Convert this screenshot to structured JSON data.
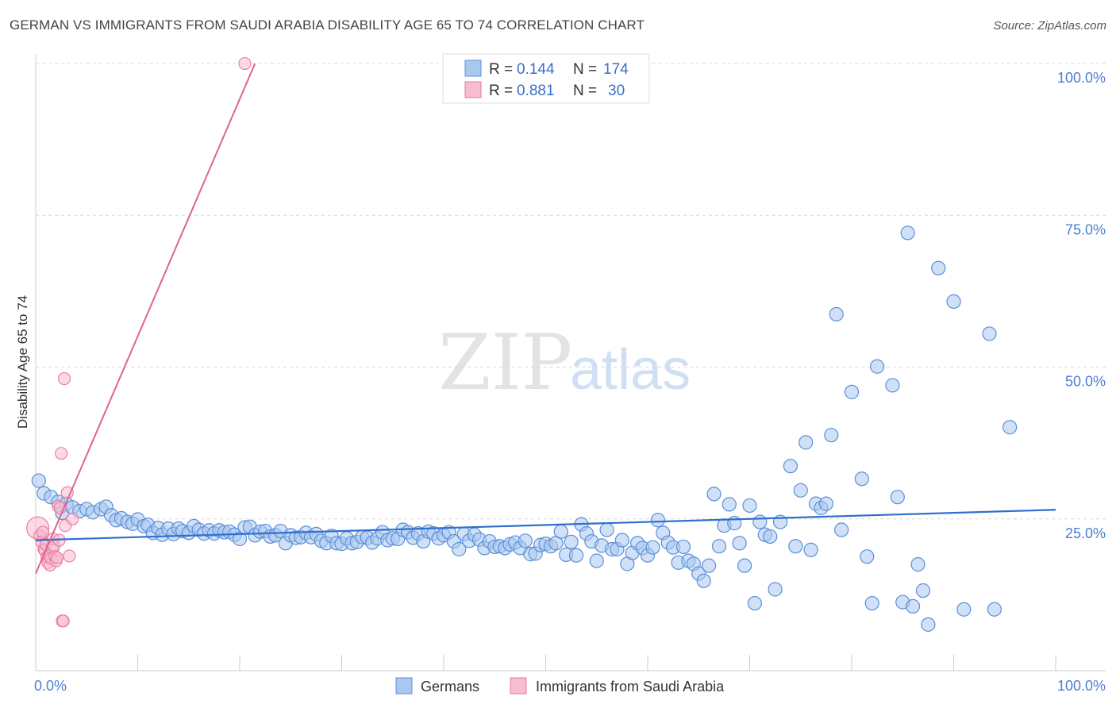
{
  "header": {
    "title": "GERMAN VS IMMIGRANTS FROM SAUDI ARABIA DISABILITY AGE 65 TO 74 CORRELATION CHART",
    "source": "Source: ZipAtlas.com"
  },
  "watermark": {
    "zip": "ZIP",
    "atlas": "atlas"
  },
  "colors": {
    "german_fill": "#a9c8f0",
    "german_stroke": "#5b8fd8",
    "german_line": "#2f6fcf",
    "saudi_fill": "#f7bcd0",
    "saudi_stroke": "#e9799e",
    "saudi_line": "#e0628f",
    "grid": "#d8d8d8",
    "axis_text": "#4a7fd0"
  },
  "legend": {
    "german": {
      "r_label": "R =",
      "r_value": "0.144",
      "n_label": "N =",
      "n_value": "174"
    },
    "saudi": {
      "r_label": "R =",
      "r_value": "0.881",
      "n_label": "N =",
      "n_value": "30"
    }
  },
  "bottom_legend": {
    "german": "Germans",
    "saudi": "Immigrants from Saudi Arabia"
  },
  "chart_data": {
    "type": "scatter",
    "title": "GERMAN VS IMMIGRANTS FROM SAUDI ARABIA DISABILITY AGE 65 TO 74 CORRELATION CHART",
    "xlabel": "",
    "ylabel": "Disability Age 65 to 74",
    "xlim": [
      0,
      100
    ],
    "ylim": [
      0,
      105
    ],
    "x_tick_labels": [
      "0.0%",
      "100.0%"
    ],
    "y_ticks": [
      25,
      50,
      75,
      100
    ],
    "y_tick_labels": [
      "25.0%",
      "50.0%",
      "75.0%",
      "100.0%"
    ],
    "grid": true,
    "legend_position": "top-center",
    "series": [
      {
        "name": "Germans",
        "r": 0.144,
        "n": 174,
        "trend": {
          "x": [
            0,
            100
          ],
          "y": [
            21.5,
            26.5
          ]
        },
        "points": [
          [
            0.3,
            31.3
          ],
          [
            0.8,
            29.2
          ],
          [
            1.5,
            28.6
          ],
          [
            2.2,
            27.8
          ],
          [
            2.6,
            26.0
          ],
          [
            3.0,
            27.5
          ],
          [
            3.6,
            26.9
          ],
          [
            4.3,
            26.3
          ],
          [
            5.0,
            26.6
          ],
          [
            5.6,
            26.1
          ],
          [
            6.4,
            26.6
          ],
          [
            6.9,
            27.0
          ],
          [
            7.4,
            25.6
          ],
          [
            7.9,
            24.8
          ],
          [
            8.4,
            25.1
          ],
          [
            9.0,
            24.5
          ],
          [
            9.5,
            24.2
          ],
          [
            10.0,
            24.9
          ],
          [
            10.6,
            23.8
          ],
          [
            11.0,
            24.0
          ],
          [
            11.5,
            22.7
          ],
          [
            12.0,
            23.5
          ],
          [
            12.4,
            22.4
          ],
          [
            13.0,
            23.4
          ],
          [
            13.5,
            22.5
          ],
          [
            14.0,
            23.4
          ],
          [
            14.4,
            23.0
          ],
          [
            15.0,
            22.7
          ],
          [
            15.5,
            23.8
          ],
          [
            16.0,
            23.2
          ],
          [
            16.5,
            22.6
          ],
          [
            17.0,
            23.1
          ],
          [
            17.5,
            22.6
          ],
          [
            18.0,
            23.1
          ],
          [
            18.5,
            22.8
          ],
          [
            19.0,
            22.9
          ],
          [
            19.5,
            22.4
          ],
          [
            20.0,
            21.7
          ],
          [
            20.5,
            23.6
          ],
          [
            21.0,
            23.7
          ],
          [
            21.5,
            22.3
          ],
          [
            22.0,
            22.9
          ],
          [
            22.5,
            23.0
          ],
          [
            23.0,
            22.1
          ],
          [
            23.5,
            22.3
          ],
          [
            24.0,
            23.0
          ],
          [
            24.5,
            21.0
          ],
          [
            25.0,
            22.3
          ],
          [
            25.5,
            21.9
          ],
          [
            26.0,
            22.0
          ],
          [
            26.5,
            22.7
          ],
          [
            27.0,
            22.0
          ],
          [
            27.5,
            22.5
          ],
          [
            28.0,
            21.4
          ],
          [
            28.5,
            21.0
          ],
          [
            29.0,
            22.2
          ],
          [
            29.5,
            21.0
          ],
          [
            30.0,
            20.9
          ],
          [
            30.5,
            21.8
          ],
          [
            31.0,
            21.0
          ],
          [
            31.5,
            21.2
          ],
          [
            32.0,
            22.0
          ],
          [
            32.5,
            21.9
          ],
          [
            33.0,
            21.1
          ],
          [
            33.5,
            21.8
          ],
          [
            34.0,
            22.8
          ],
          [
            34.5,
            21.5
          ],
          [
            35.0,
            21.8
          ],
          [
            35.5,
            21.7
          ],
          [
            36.0,
            23.2
          ],
          [
            36.5,
            22.8
          ],
          [
            37.0,
            21.9
          ],
          [
            37.5,
            22.6
          ],
          [
            38.0,
            21.3
          ],
          [
            38.5,
            22.9
          ],
          [
            39.0,
            22.6
          ],
          [
            39.5,
            21.8
          ],
          [
            40.0,
            22.3
          ],
          [
            40.5,
            22.8
          ],
          [
            41.0,
            21.3
          ],
          [
            41.5,
            20.0
          ],
          [
            42.0,
            22.5
          ],
          [
            42.5,
            21.4
          ],
          [
            43.0,
            22.4
          ],
          [
            43.5,
            21.6
          ],
          [
            44.0,
            20.2
          ],
          [
            44.5,
            21.3
          ],
          [
            45.0,
            20.4
          ],
          [
            45.5,
            20.5
          ],
          [
            46.0,
            20.2
          ],
          [
            46.5,
            20.8
          ],
          [
            47.0,
            21.1
          ],
          [
            47.5,
            20.2
          ],
          [
            48.0,
            21.4
          ],
          [
            48.5,
            19.2
          ],
          [
            49.0,
            19.3
          ],
          [
            49.5,
            20.7
          ],
          [
            50.0,
            20.9
          ],
          [
            50.5,
            20.5
          ],
          [
            51.0,
            21.0
          ],
          [
            51.5,
            22.9
          ],
          [
            52.0,
            19.1
          ],
          [
            52.5,
            21.2
          ],
          [
            53.0,
            19.0
          ],
          [
            53.5,
            24.1
          ],
          [
            54.0,
            22.6
          ],
          [
            54.5,
            21.3
          ],
          [
            55.0,
            18.1
          ],
          [
            55.5,
            20.6
          ],
          [
            56.0,
            23.2
          ],
          [
            56.5,
            20.0
          ],
          [
            57.0,
            20.0
          ],
          [
            57.5,
            21.5
          ],
          [
            58.0,
            17.6
          ],
          [
            58.5,
            19.4
          ],
          [
            59.0,
            21.0
          ],
          [
            59.5,
            20.2
          ],
          [
            60.0,
            19.0
          ],
          [
            60.5,
            20.3
          ],
          [
            61.0,
            24.8
          ],
          [
            61.5,
            22.7
          ],
          [
            62.0,
            21.1
          ],
          [
            62.5,
            20.3
          ],
          [
            63.0,
            17.8
          ],
          [
            63.5,
            20.4
          ],
          [
            64.0,
            18.1
          ],
          [
            64.5,
            17.6
          ],
          [
            65.0,
            16.0
          ],
          [
            65.5,
            14.8
          ],
          [
            66.0,
            17.3
          ],
          [
            66.5,
            29.1
          ],
          [
            67.0,
            20.5
          ],
          [
            67.5,
            23.9
          ],
          [
            68.0,
            27.4
          ],
          [
            68.5,
            24.3
          ],
          [
            69.0,
            21.0
          ],
          [
            69.5,
            17.3
          ],
          [
            70.0,
            27.2
          ],
          [
            70.5,
            11.1
          ],
          [
            71.0,
            24.5
          ],
          [
            71.5,
            22.4
          ],
          [
            72.0,
            22.1
          ],
          [
            72.5,
            13.4
          ],
          [
            73.0,
            24.5
          ],
          [
            74.0,
            33.7
          ],
          [
            74.5,
            20.5
          ],
          [
            75.0,
            29.7
          ],
          [
            75.5,
            37.6
          ],
          [
            76.0,
            19.9
          ],
          [
            76.5,
            27.5
          ],
          [
            77.0,
            26.8
          ],
          [
            77.5,
            27.5
          ],
          [
            78.0,
            38.8
          ],
          [
            78.5,
            58.7
          ],
          [
            79.0,
            23.2
          ],
          [
            80.0,
            45.9
          ],
          [
            81.0,
            31.6
          ],
          [
            81.5,
            18.8
          ],
          [
            82.0,
            11.1
          ],
          [
            82.5,
            50.1
          ],
          [
            84.0,
            47.0
          ],
          [
            84.5,
            28.6
          ],
          [
            85.0,
            11.3
          ],
          [
            85.5,
            72.1
          ],
          [
            86.0,
            10.6
          ],
          [
            86.5,
            17.5
          ],
          [
            87.0,
            13.2
          ],
          [
            87.5,
            7.6
          ],
          [
            88.5,
            66.3
          ],
          [
            90.0,
            60.8
          ],
          [
            91.0,
            10.1
          ],
          [
            93.5,
            55.5
          ],
          [
            94.0,
            10.1
          ],
          [
            95.5,
            40.1
          ]
        ]
      },
      {
        "name": "Immigrants from Saudi Arabia",
        "r": 0.881,
        "n": 30,
        "trend": {
          "x": [
            0,
            21.5
          ],
          "y": [
            16,
            100
          ]
        },
        "points": [
          [
            0.2,
            23.5
          ],
          [
            0.4,
            22.2
          ],
          [
            0.6,
            21.2
          ],
          [
            0.7,
            22.8
          ],
          [
            0.8,
            20.0
          ],
          [
            0.9,
            19.8
          ],
          [
            1.0,
            20.8
          ],
          [
            1.1,
            18.7
          ],
          [
            1.2,
            17.8
          ],
          [
            1.3,
            19.0
          ],
          [
            1.4,
            17.4
          ],
          [
            1.5,
            18.5
          ],
          [
            1.6,
            20.2
          ],
          [
            1.7,
            21.7
          ],
          [
            1.8,
            20.5
          ],
          [
            1.9,
            18.8
          ],
          [
            2.0,
            18.1
          ],
          [
            2.1,
            18.6
          ],
          [
            2.2,
            27.1
          ],
          [
            2.3,
            21.5
          ],
          [
            2.4,
            26.8
          ],
          [
            2.5,
            35.8
          ],
          [
            2.6,
            8.2
          ],
          [
            2.7,
            8.2
          ],
          [
            2.8,
            48.1
          ],
          [
            2.9,
            23.9
          ],
          [
            3.1,
            29.3
          ],
          [
            3.3,
            18.9
          ],
          [
            3.6,
            25.0
          ],
          [
            20.5,
            100.0
          ]
        ]
      }
    ]
  }
}
